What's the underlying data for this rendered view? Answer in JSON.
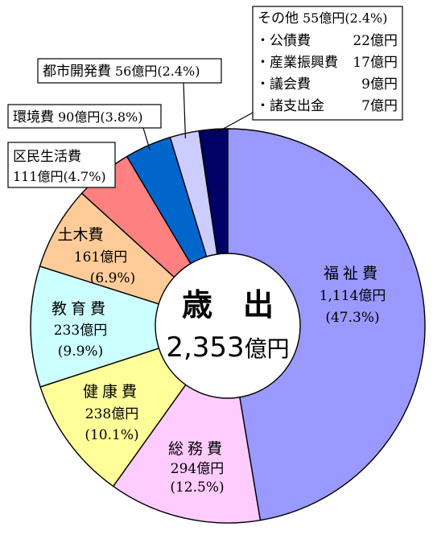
{
  "chart_data": {
    "type": "pie",
    "center_title": "歳　出",
    "center_total": "2,353",
    "center_unit": "億円",
    "slices": [
      {
        "name": "福祉費",
        "value": 1114,
        "percent": 47.3,
        "value_text": "1,114億円",
        "pct_text": "(47.3%)",
        "color": "#9999ff"
      },
      {
        "name": "総務費",
        "value": 294,
        "percent": 12.5,
        "value_text": "294億円",
        "pct_text": "(12.5%)",
        "color": "#ffccff"
      },
      {
        "name": "健康費",
        "value": 238,
        "percent": 10.1,
        "value_text": "238億円",
        "pct_text": "(10.1%)",
        "color": "#ffff99"
      },
      {
        "name": "教育費",
        "value": 233,
        "percent": 9.9,
        "value_text": "233億円",
        "pct_text": "(9.9%)",
        "color": "#ccffff"
      },
      {
        "name": "土木費",
        "value": 161,
        "percent": 6.9,
        "value_text": "161億円",
        "pct_text": "(6.9%)",
        "color": "#ffcc99"
      },
      {
        "name": "区民生活費",
        "value": 111,
        "percent": 4.7,
        "value_text": "111億円(4.7%)",
        "pct_text": "",
        "color": "#ff8080"
      },
      {
        "name": "環境費",
        "value": 90,
        "percent": 3.8,
        "value_text": "90億円(3.8%)",
        "pct_text": "",
        "color": "#0066cc"
      },
      {
        "name": "都市開発費",
        "value": 56,
        "percent": 2.4,
        "value_text": "56億円(2.4%)",
        "pct_text": "",
        "color": "#ccccff"
      },
      {
        "name": "その他",
        "value": 55,
        "percent": 2.4,
        "value_text": "55億円(2.4%)",
        "pct_text": "",
        "color": "#000066"
      }
    ],
    "other_breakdown": [
      {
        "name": "・公債費",
        "value": "22億円"
      },
      {
        "name": "・産業振興費",
        "value": "17億円"
      },
      {
        "name": "・議会費",
        "value": "9億円"
      },
      {
        "name": "・諸支出金",
        "value": "7億円"
      }
    ]
  }
}
